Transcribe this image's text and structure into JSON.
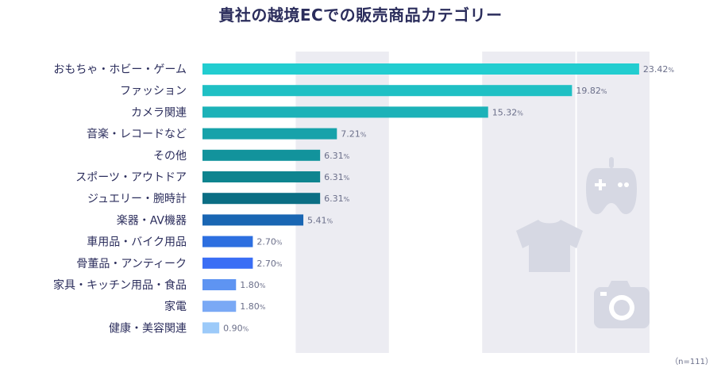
{
  "title": "貴社の越境ECでの販売商品カテゴリー",
  "note": "（n=111）",
  "chart_data": {
    "type": "bar",
    "orientation": "horizontal",
    "title": "貴社の越境ECでの販売商品カテゴリー",
    "value_unit": "%",
    "categories": [
      "おもちゃ・ホビー・ゲーム",
      "ファッション",
      "カメラ関連",
      "音楽・レコードなど",
      "その他",
      "スポーツ・アウトドア",
      "ジュエリー・腕時計",
      "楽器・AV機器",
      "車用品・バイク用品",
      "骨董品・アンティーク",
      "家具・キッチン用品・食品",
      "家電",
      "健康・美容関連"
    ],
    "values": [
      23.42,
      19.82,
      15.32,
      7.21,
      6.31,
      6.31,
      6.31,
      5.41,
      2.7,
      2.7,
      1.8,
      1.8,
      0.9
    ],
    "value_labels": [
      "23.42",
      "19.82",
      "15.32",
      "7.21",
      "6.31",
      "6.31",
      "6.31",
      "5.41",
      "2.70",
      "2.70",
      "1.80",
      "1.80",
      "0.90"
    ],
    "bar_colors": [
      "#22cdd0",
      "#1fc0c4",
      "#1cb2b8",
      "#17a2aa",
      "#12939c",
      "#0e848f",
      "#0b6e84",
      "#1966b3",
      "#2d6fe0",
      "#3a6ef5",
      "#5e94f2",
      "#7aa9f5",
      "#9ccaf9"
    ],
    "xlim": [
      0,
      25
    ],
    "grid": "alternating vertical bands",
    "legend": "none"
  },
  "icons": [
    "game-controller-icon",
    "t-shirt-icon",
    "camera-icon"
  ],
  "colors": {
    "band": "#ececf2",
    "icon": "#d6d8e3",
    "text": "#2b2d5c"
  }
}
